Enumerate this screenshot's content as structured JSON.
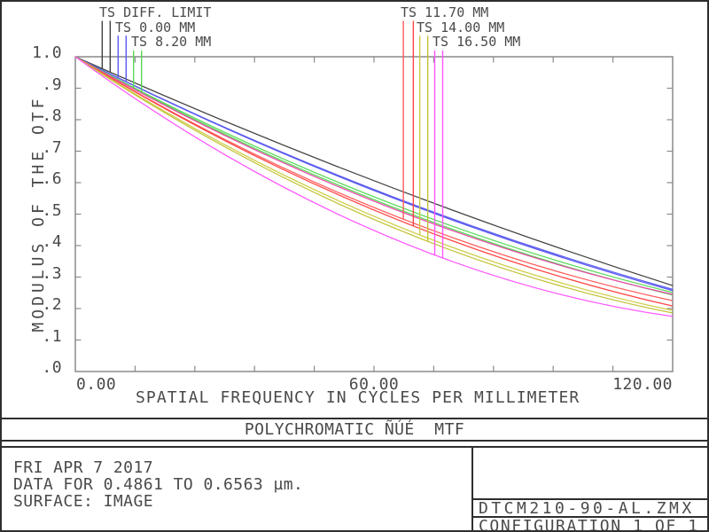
{
  "chart_data": {
    "type": "line",
    "title": "POLYCHROMATIC ÑÚÉ  MTF",
    "xlabel": "SPATIAL FREQUENCY IN CYCLES PER MILLIMETER",
    "ylabel": "MODULUS OF THE OTF",
    "xlim": [
      0,
      120
    ],
    "ylim": [
      0,
      1
    ],
    "grid": "off",
    "x_tick_values": [
      0,
      60,
      120
    ],
    "x_tick_labels": [
      "0.00",
      "60.00",
      "120.00"
    ],
    "x_minor_tick_step": 12,
    "y_tick_labels": [
      "1.0",
      ".9",
      ".8",
      ".7",
      ".6",
      ".5",
      ".4",
      ".3",
      ".2",
      ".1",
      ".0"
    ],
    "y_minor_tick_step": 0.1,
    "series": [
      {
        "id": "diff",
        "name": "TS DIFF. LIMIT",
        "color": "#3f3f3f",
        "x": [
          0,
          60,
          120
        ],
        "values": [
          1.0,
          0.606,
          0.273
        ]
      },
      {
        "id": "t0s",
        "name": "TS 0.00 MM (S)",
        "color": "#5b5bf0",
        "x": [
          0,
          60,
          120
        ],
        "values": [
          1.0,
          0.578,
          0.261
        ]
      },
      {
        "id": "t0t",
        "name": "TS 0.00 MM (T)",
        "color": "#5b5bf0",
        "x": [
          0,
          60,
          120
        ],
        "values": [
          1.0,
          0.575,
          0.257
        ]
      },
      {
        "id": "t82s",
        "name": "TS 8.20 MM (S)",
        "color": "#57d957",
        "x": [
          0,
          60,
          120
        ],
        "values": [
          1.0,
          0.555,
          0.251
        ]
      },
      {
        "id": "t82t",
        "name": "TS 8.20 MM (T)",
        "color": "#57d957",
        "x": [
          0,
          60,
          120
        ],
        "values": [
          1.0,
          0.546,
          0.243
        ]
      },
      {
        "id": "t165s",
        "name": "TS 16.50 MM (S)",
        "color": "#ee44aa",
        "x": [
          0,
          60,
          120
        ],
        "values": [
          1.0,
          0.541,
          0.245
        ]
      },
      {
        "id": "t117s",
        "name": "TS 11.70 MM (S)",
        "color": "#ff5c5c",
        "x": [
          0,
          60,
          120
        ],
        "values": [
          1.0,
          0.521,
          0.225
        ]
      },
      {
        "id": "t117t",
        "name": "TS 11.70 MM (T)",
        "color": "#ff4444",
        "x": [
          0,
          60,
          120
        ],
        "values": [
          1.0,
          0.513,
          0.208
        ]
      },
      {
        "id": "t140s",
        "name": "TS 14.00 MM (S)",
        "color": "#cdcd45",
        "x": [
          0,
          60,
          120
        ],
        "values": [
          1.0,
          0.493,
          0.194
        ]
      },
      {
        "id": "t140t",
        "name": "TS 14.00 MM (T)",
        "color": "#c2c237",
        "x": [
          0,
          60,
          120
        ],
        "values": [
          1.0,
          0.483,
          0.186
        ]
      },
      {
        "id": "t165t",
        "name": "TS 16.50 MM (T)",
        "color": "#ff55ff",
        "x": [
          0,
          60,
          120
        ],
        "values": [
          1.0,
          0.448,
          0.175
        ]
      }
    ],
    "legend": [
      {
        "label": "TS DIFF. LIMIT",
        "color": "#3f3f3f",
        "side": "left",
        "row": 0,
        "lines_f": [
          5.4,
          7.0
        ],
        "targets": [
          "diff",
          "diff"
        ]
      },
      {
        "label": "TS 0.00 MM",
        "color": "#5b5bf0",
        "side": "left",
        "row": 1,
        "lines_f": [
          8.6,
          10.2
        ],
        "targets": [
          "t0s",
          "t0t"
        ]
      },
      {
        "label": "TS 8.20 MM",
        "color": "#57d957",
        "side": "left",
        "row": 2,
        "lines_f": [
          11.7,
          13.3
        ],
        "targets": [
          "t82s",
          "t82t"
        ]
      },
      {
        "label": "TS 11.70 MM",
        "color": "#ff5c5c",
        "side": "right",
        "row": 0,
        "lines_f": [
          65.9,
          67.9
        ],
        "targets": [
          "t117s",
          "t117t"
        ]
      },
      {
        "label": "TS 14.00 MM",
        "color": "#cdcd45",
        "side": "right",
        "row": 1,
        "lines_f": [
          69.2,
          70.8
        ],
        "targets": [
          "t140s",
          "t140t"
        ]
      },
      {
        "label": "TS 16.50 MM",
        "color": "#ff55ff",
        "side": "right",
        "row": 2,
        "lines_f": [
          72.2,
          73.8
        ],
        "targets": [
          "t165t",
          "t165t"
        ]
      }
    ],
    "frame_color": "#8a8a8a",
    "text_color": "#4a4a4a"
  },
  "footer": {
    "date": "FRI APR 7 2017",
    "data_range": "DATA FOR 0.4861 TO 0.6563 µm.",
    "surface": "SURFACE: IMAGE",
    "filename": "DTCM210-90-AL.ZMX",
    "configuration": "CONFIGURATION 1 OF 1"
  }
}
